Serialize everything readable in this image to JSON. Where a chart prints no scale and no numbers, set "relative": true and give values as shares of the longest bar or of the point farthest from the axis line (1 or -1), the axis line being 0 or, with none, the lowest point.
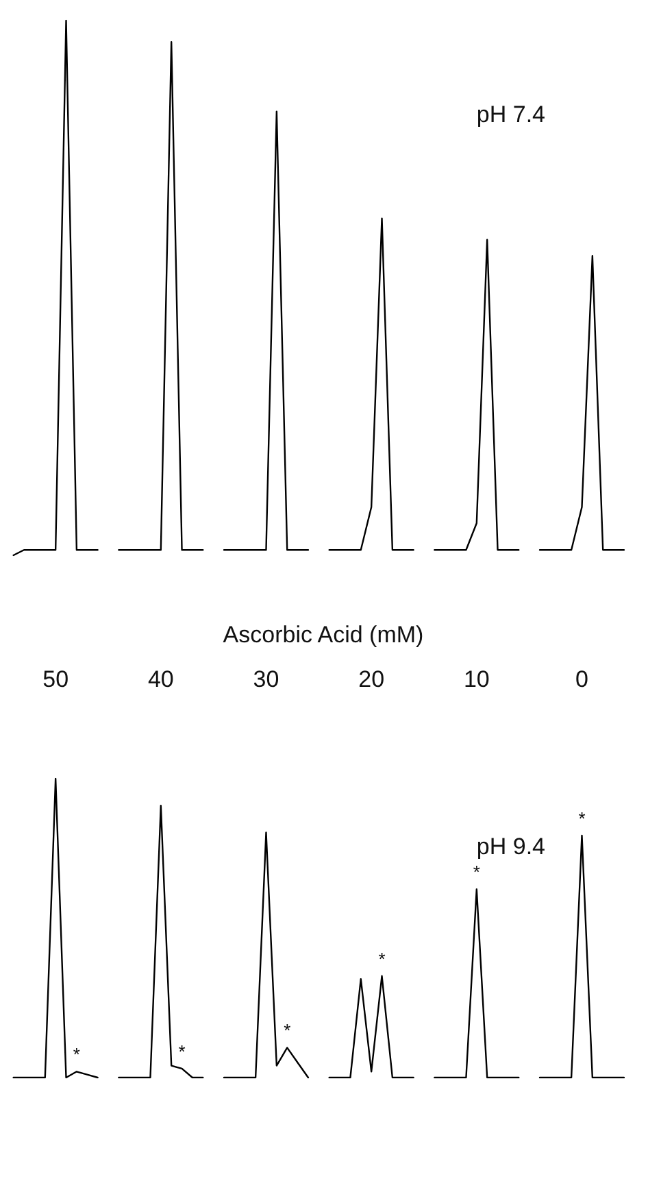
{
  "chart_data": [
    {
      "type": "line",
      "title": "pH 7.4",
      "xlabel": "Ascorbic Acid (mM)",
      "relative": true,
      "categories": [
        null,
        null,
        null,
        null,
        "50",
        null,
        null,
        null,
        null,
        null,
        null,
        null,
        null,
        null,
        "40",
        null,
        null,
        null,
        null,
        null,
        null,
        null,
        null,
        null,
        "30",
        null,
        null,
        null,
        null,
        null,
        null,
        null,
        null,
        null,
        "20",
        null,
        null,
        null,
        null,
        null,
        null,
        null,
        null,
        null,
        "10",
        null,
        null,
        null,
        null,
        null,
        null,
        null,
        null,
        null,
        "0",
        null,
        null,
        null,
        null,
        null
      ],
      "series": [
        {
          "color": "#000000",
          "values": [
            0,
            0.01,
            0.01,
            0.01,
            0.01,
            1,
            0.01,
            0.01,
            0.01,
            null,
            null,
            null,
            null,
            null,
            null,
            null,
            null,
            null,
            null,
            null,
            null,
            null,
            null,
            null,
            null,
            null,
            null,
            null,
            null,
            null,
            null,
            null,
            null,
            null,
            null,
            null,
            null,
            null,
            null,
            null,
            null,
            null,
            null,
            null,
            null,
            null,
            null,
            null,
            null,
            null,
            null,
            null,
            null,
            null,
            null,
            null,
            null,
            null,
            null,
            null
          ]
        },
        {
          "color": "#000000",
          "values": [
            null,
            null,
            null,
            null,
            null,
            null,
            null,
            null,
            null,
            null,
            0.01,
            0.01,
            0.01,
            0.01,
            0.01,
            0.96,
            0.01,
            0.01,
            0.01,
            null,
            null,
            null,
            null,
            null,
            null,
            null,
            null,
            null,
            null,
            null,
            null,
            null,
            null,
            null,
            null,
            null,
            null,
            null,
            null,
            null,
            null,
            null,
            null,
            null,
            null,
            null,
            null,
            null,
            null,
            null,
            null,
            null,
            null,
            null,
            null,
            null,
            null,
            null,
            null,
            null
          ]
        },
        {
          "color": "#000000",
          "values": [
            null,
            null,
            null,
            null,
            null,
            null,
            null,
            null,
            null,
            null,
            null,
            null,
            null,
            null,
            null,
            null,
            null,
            null,
            null,
            null,
            0.01,
            0.01,
            0.01,
            0.01,
            0.01,
            0.83,
            0.01,
            0.01,
            0.01,
            null,
            null,
            null,
            null,
            null,
            null,
            null,
            null,
            null,
            null,
            null,
            null,
            null,
            null,
            null,
            null,
            null,
            null,
            null,
            null,
            null,
            null,
            null,
            null,
            null,
            null,
            null,
            null,
            null,
            null,
            null
          ]
        },
        {
          "color": "#000000",
          "values": [
            null,
            null,
            null,
            null,
            null,
            null,
            null,
            null,
            null,
            null,
            null,
            null,
            null,
            null,
            null,
            null,
            null,
            null,
            null,
            null,
            null,
            null,
            null,
            null,
            null,
            null,
            null,
            null,
            null,
            null,
            0.01,
            0.01,
            0.01,
            0.01,
            0.09,
            0.63,
            0.01,
            0.01,
            0.01,
            null,
            null,
            null,
            null,
            null,
            null,
            null,
            null,
            null,
            null,
            null,
            null,
            null,
            null,
            null,
            null,
            null,
            null,
            null,
            null,
            null
          ]
        },
        {
          "color": "#000000",
          "values": [
            null,
            null,
            null,
            null,
            null,
            null,
            null,
            null,
            null,
            null,
            null,
            null,
            null,
            null,
            null,
            null,
            null,
            null,
            null,
            null,
            null,
            null,
            null,
            null,
            null,
            null,
            null,
            null,
            null,
            null,
            null,
            null,
            null,
            null,
            null,
            null,
            null,
            null,
            null,
            null,
            0.01,
            0.01,
            0.01,
            0.01,
            0.06,
            0.59,
            0.01,
            0.01,
            0.01,
            null,
            null,
            null,
            null,
            null,
            null,
            null,
            null,
            null,
            null,
            null
          ]
        },
        {
          "color": "#000000",
          "values": [
            null,
            null,
            null,
            null,
            null,
            null,
            null,
            null,
            null,
            null,
            null,
            null,
            null,
            null,
            null,
            null,
            null,
            null,
            null,
            null,
            null,
            null,
            null,
            null,
            null,
            null,
            null,
            null,
            null,
            null,
            null,
            null,
            null,
            null,
            null,
            null,
            null,
            null,
            null,
            null,
            null,
            null,
            null,
            null,
            null,
            null,
            null,
            null,
            null,
            null,
            0.01,
            0.01,
            0.01,
            0.01,
            0.09,
            0.56,
            0.01,
            0.01,
            0.01,
            null
          ]
        }
      ]
    },
    {
      "type": "line",
      "title": "pH 9.4",
      "relative": true,
      "categories": [
        null,
        null,
        null,
        null,
        null,
        null,
        null,
        null,
        null,
        null,
        null,
        null,
        null,
        null,
        null,
        null,
        null,
        null,
        null,
        null,
        null,
        null,
        null,
        null,
        null,
        null,
        null,
        null,
        null,
        null,
        null,
        null,
        null,
        null,
        null,
        null,
        null,
        null,
        null,
        null,
        null,
        null,
        null,
        null,
        null,
        null,
        null,
        null,
        null,
        null,
        null,
        null,
        null,
        null,
        null,
        null,
        null,
        null,
        null,
        null
      ],
      "annotations": [
        {
          "text": "*",
          "y": 0.02
        },
        {
          "text": "*",
          "y": 0.03
        },
        {
          "text": "*",
          "y": 0.1
        },
        {
          "text": "*",
          "y": 0.34
        },
        {
          "text": "*",
          "y": 0.63
        },
        {
          "text": "*",
          "y": 0.81
        }
      ],
      "series": [
        {
          "color": "#000000",
          "values": [
            0,
            0,
            0,
            0,
            1,
            0,
            0.02,
            0.01,
            0,
            null,
            null,
            null,
            null,
            null,
            null,
            null,
            null,
            null,
            null,
            null,
            null,
            null,
            null,
            null,
            null,
            null,
            null,
            null,
            null,
            null,
            null,
            null,
            null,
            null,
            null,
            null,
            null,
            null,
            null,
            null,
            null,
            null,
            null,
            null,
            null,
            null,
            null,
            null,
            null,
            null,
            null,
            null,
            null,
            null,
            null,
            null,
            null,
            null,
            null,
            null
          ]
        },
        {
          "color": "#000000",
          "values": [
            null,
            null,
            null,
            null,
            null,
            null,
            null,
            null,
            null,
            null,
            0,
            0,
            0,
            0,
            0.91,
            0.04,
            0.03,
            0,
            0,
            null,
            null,
            null,
            null,
            null,
            null,
            null,
            null,
            null,
            null,
            null,
            null,
            null,
            null,
            null,
            null,
            null,
            null,
            null,
            null,
            null,
            null,
            null,
            null,
            null,
            null,
            null,
            null,
            null,
            null,
            null,
            null,
            null,
            null,
            null,
            null,
            null,
            null,
            null,
            null,
            null
          ]
        },
        {
          "color": "#000000",
          "values": [
            null,
            null,
            null,
            null,
            null,
            null,
            null,
            null,
            null,
            null,
            null,
            null,
            null,
            null,
            null,
            null,
            null,
            null,
            null,
            null,
            0,
            0,
            0,
            0,
            0.82,
            0.04,
            0.1,
            0.05,
            0,
            null,
            null,
            null,
            null,
            null,
            null,
            null,
            null,
            null,
            null,
            null,
            null,
            null,
            null,
            null,
            null,
            null,
            null,
            null,
            null,
            null,
            null,
            null,
            null,
            null,
            null,
            null,
            null,
            null,
            null,
            null
          ]
        },
        {
          "color": "#000000",
          "values": [
            null,
            null,
            null,
            null,
            null,
            null,
            null,
            null,
            null,
            null,
            null,
            null,
            null,
            null,
            null,
            null,
            null,
            null,
            null,
            null,
            null,
            null,
            null,
            null,
            null,
            null,
            null,
            null,
            null,
            null,
            0,
            0,
            0,
            0.33,
            0.02,
            0.34,
            0,
            0,
            0,
            null,
            null,
            null,
            null,
            null,
            null,
            null,
            null,
            null,
            null,
            null,
            null,
            null,
            null,
            null,
            null,
            null,
            null,
            null,
            null,
            null
          ]
        },
        {
          "color": "#000000",
          "values": [
            null,
            null,
            null,
            null,
            null,
            null,
            null,
            null,
            null,
            null,
            null,
            null,
            null,
            null,
            null,
            null,
            null,
            null,
            null,
            null,
            null,
            null,
            null,
            null,
            null,
            null,
            null,
            null,
            null,
            null,
            null,
            null,
            null,
            null,
            null,
            null,
            null,
            null,
            null,
            null,
            0,
            0,
            0,
            0,
            0.63,
            0,
            0,
            0,
            0,
            null,
            null,
            null,
            null,
            null,
            null,
            null,
            null,
            null,
            null,
            null
          ]
        },
        {
          "color": "#000000",
          "values": [
            null,
            null,
            null,
            null,
            null,
            null,
            null,
            null,
            null,
            null,
            null,
            null,
            null,
            null,
            null,
            null,
            null,
            null,
            null,
            null,
            null,
            null,
            null,
            null,
            null,
            null,
            null,
            null,
            null,
            null,
            null,
            null,
            null,
            null,
            null,
            null,
            null,
            null,
            null,
            null,
            null,
            null,
            null,
            null,
            null,
            null,
            null,
            null,
            null,
            null,
            0,
            0,
            0,
            0,
            0.81,
            0,
            0,
            0,
            0,
            null
          ]
        }
      ]
    }
  ]
}
